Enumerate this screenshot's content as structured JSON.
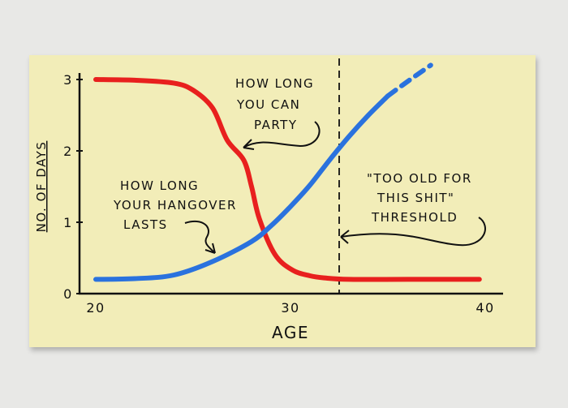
{
  "chart_data": {
    "type": "line",
    "title": "",
    "xlabel": "AGE",
    "ylabel": "NO. OF DAYS",
    "xlim": [
      20,
      40
    ],
    "ylim": [
      0,
      3
    ],
    "xticks": [
      "20",
      "30",
      "40"
    ],
    "yticks": [
      "0",
      "1",
      "2",
      "3"
    ],
    "grid": false,
    "series": [
      {
        "name": "HOW LONG YOU CAN PARTY",
        "color": "#e8201e",
        "style": "solid",
        "x": [
          20,
          22,
          24,
          25,
          26,
          26.75,
          27.6,
          28,
          28.4,
          29.2,
          30.1,
          31,
          31.75,
          33,
          36,
          39.7
        ],
        "y": [
          3.0,
          2.99,
          2.95,
          2.85,
          2.6,
          2.15,
          1.87,
          1.5,
          1.05,
          0.55,
          0.33,
          0.25,
          0.22,
          0.2,
          0.2,
          0.2
        ]
      },
      {
        "name": "HOW LONG YOUR HANGOVER LASTS",
        "color": "#2a72de",
        "style": "solid",
        "x": [
          20,
          22,
          24,
          26,
          28,
          29,
          30,
          31,
          32,
          33,
          34,
          35
        ],
        "y": [
          0.2,
          0.21,
          0.26,
          0.45,
          0.73,
          0.95,
          1.22,
          1.52,
          1.87,
          2.2,
          2.5,
          2.77
        ]
      },
      {
        "name": "",
        "color": "#2a72de",
        "style": "dashed",
        "x": [
          35,
          36,
          37.2
        ],
        "y": [
          2.77,
          2.97,
          3.2
        ]
      }
    ],
    "threshold": {
      "x": 32.5,
      "label": "\"TOO OLD FOR THIS SHIT\" THRESHOLD"
    },
    "annotations": [
      {
        "lines": [
          "HOW LONG",
          "YOU CAN",
          "PARTY"
        ],
        "target": "HOW LONG YOU CAN PARTY"
      },
      {
        "lines": [
          "HOW LONG",
          "YOUR HANGOVER",
          "LASTS"
        ],
        "target": "HOW LONG YOUR HANGOVER LASTS"
      },
      {
        "lines": [
          "\"TOO OLD FOR",
          "THIS SHIT\"",
          "THRESHOLD"
        ],
        "target": "threshold"
      }
    ]
  }
}
